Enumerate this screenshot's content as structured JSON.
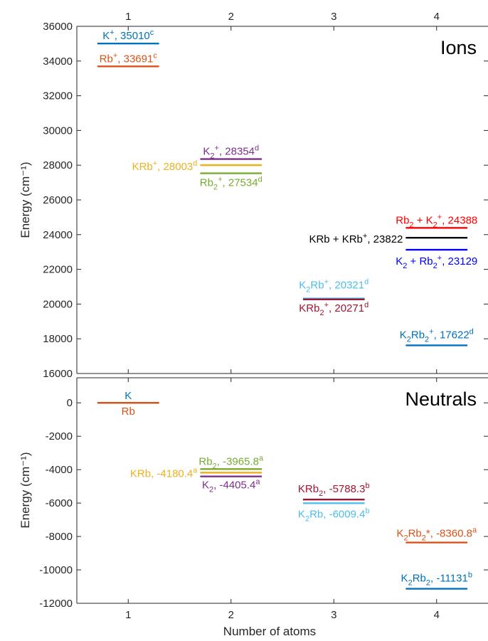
{
  "colors": {
    "blue_mpl": "#0072BD",
    "orange_mpl": "#D95319",
    "yellow_mpl": "#EDB120",
    "purple_mpl": "#7E2F8E",
    "green_mpl": "#77AC30",
    "cyan_mpl": "#4DBEEE",
    "darkred_mpl": "#A2142F",
    "red": "#FF0000",
    "black": "#000000",
    "blue": "#0000FF"
  },
  "chart_data": [
    {
      "panel": "ions",
      "type": "level-diagram",
      "panel_label": "Ions",
      "xlabel": "",
      "ylabel": "Energy (cm⁻¹)",
      "xlim": [
        0.5,
        4.5
      ],
      "ylim": [
        16000,
        36000
      ],
      "x_ticks": [
        "1",
        "2",
        "3",
        "4"
      ],
      "x_tick_position": "top",
      "y_ticks": [
        16000,
        18000,
        20000,
        22000,
        24000,
        26000,
        28000,
        30000,
        32000,
        34000,
        36000
      ],
      "levels": [
        {
          "x": 1,
          "y": 35010,
          "color": "#0072BD",
          "label": "K<sup>+</sup>, 35010<sup>c</sup>"
        },
        {
          "x": 1,
          "y": 33691,
          "color": "#D95319",
          "label": "Rb<sup>+</sup>, 33691<sup>c</sup>"
        },
        {
          "x": 2,
          "y": 28354,
          "color": "#7E2F8E",
          "label": "K<sub>2</sub><sup>+</sup>, 28354<sup>d</sup>"
        },
        {
          "x": 2,
          "y": 28003,
          "color": "#EDB120",
          "label": "KRb<sup>+</sup>, 28003<sup>d</sup>"
        },
        {
          "x": 2,
          "y": 27534,
          "color": "#77AC30",
          "label": "Rb<sub>2</sub><sup>+</sup>, 27534<sup>d</sup>"
        },
        {
          "x": 3,
          "y": 20321,
          "color": "#4DBEEE",
          "label": "K<sub>2</sub>Rb<sup>+</sup>, 20321<sup>d</sup>"
        },
        {
          "x": 3,
          "y": 20271,
          "color": "#A2142F",
          "label": "KRb<sub>2</sub><sup>+</sup>, 20271<sup>d</sup>"
        },
        {
          "x": 4,
          "y": 24388,
          "color": "#FF0000",
          "label": "Rb<sub>2</sub> + K<sub>2</sub><sup>+</sup>, 24388"
        },
        {
          "x": 4,
          "y": 23822,
          "color": "#000000",
          "label": "KRb + KRb<sup>+</sup>, 23822"
        },
        {
          "x": 4,
          "y": 23129,
          "color": "#0000FF",
          "label": "K<sub>2</sub> + Rb<sub>2</sub><sup>+</sup>, 23129"
        },
        {
          "x": 4,
          "y": 17622,
          "color": "#0072BD",
          "label": "K<sub>2</sub>Rb<sub>2</sub><sup>+</sup>, 17622<sup>d</sup>"
        }
      ]
    },
    {
      "panel": "neutrals",
      "type": "level-diagram",
      "panel_label": "Neutrals",
      "xlabel": "Number of atoms",
      "ylabel": "Energy (cm⁻¹)",
      "xlim": [
        0.5,
        4.5
      ],
      "ylim": [
        -12000,
        1500
      ],
      "x_ticks": [
        "1",
        "2",
        "3",
        "4"
      ],
      "x_tick_position": "bottom",
      "y_ticks": [
        -12000,
        -10000,
        -8000,
        -6000,
        -4000,
        -2000,
        0
      ],
      "levels": [
        {
          "x": 1,
          "y": 0,
          "color": "#0072BD",
          "label": "K"
        },
        {
          "x": 1,
          "y": 0,
          "color": "#D95319",
          "label": "Rb"
        },
        {
          "x": 2,
          "y": -3965.8,
          "color": "#77AC30",
          "label": "Rb<sub>2</sub>, -3965.8<sup>a</sup>"
        },
        {
          "x": 2,
          "y": -4180.4,
          "color": "#EDB120",
          "label": "KRb, -4180.4<sup>a</sup>"
        },
        {
          "x": 2,
          "y": -4405.4,
          "color": "#7E2F8E",
          "label": "K<sub>2</sub>, -4405.4<sup>a</sup>"
        },
        {
          "x": 3,
          "y": -5788.3,
          "color": "#A2142F",
          "label": "KRb<sub>2</sub>, -5788.3<sup>b</sup>"
        },
        {
          "x": 3,
          "y": -6009.4,
          "color": "#4DBEEE",
          "label": "K<sub>2</sub>Rb, -6009.4<sup>b</sup>"
        },
        {
          "x": 4,
          "y": -8360.8,
          "color": "#D95319",
          "label": "K<sub>2</sub>Rb<sub>2</sub>*, -8360.8<sup>a</sup>"
        },
        {
          "x": 4,
          "y": -11131,
          "color": "#0072BD",
          "label": "K<sub>2</sub>Rb<sub>2</sub>, -11131<sup>b</sup>"
        }
      ]
    }
  ]
}
